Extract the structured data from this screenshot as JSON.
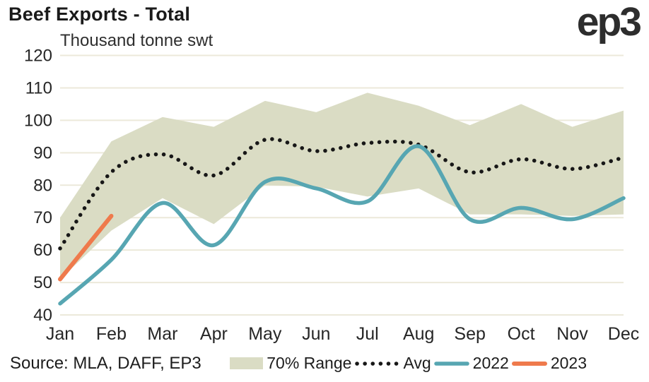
{
  "header": {
    "title": "Beef Exports - Total",
    "subtitle": "Thousand tonne swt",
    "logo": "ep3"
  },
  "source": "Source: MLA, DAFF, EP3",
  "legend": {
    "items": [
      {
        "label": "70% Range",
        "icon": "band-swatch"
      },
      {
        "label": "Avg",
        "icon": "dotted-line"
      },
      {
        "label": "2022",
        "icon": "teal-line"
      },
      {
        "label": "2023",
        "icon": "orange-line"
      }
    ]
  },
  "colors": {
    "band": "#dadcc4",
    "avg": "#171717",
    "y2022": "#57a6b2",
    "y2023": "#ef7a4c",
    "grid": "#ece9da",
    "axis_text": "#262626"
  },
  "chart_data": {
    "type": "line",
    "title": "Beef Exports - Total",
    "ylabel": "Thousand tonne swt",
    "xlabel": "",
    "categories": [
      "Jan",
      "Feb",
      "Mar",
      "Apr",
      "May",
      "Jun",
      "Jul",
      "Aug",
      "Sep",
      "Oct",
      "Nov",
      "Dec"
    ],
    "ylim": [
      40,
      120
    ],
    "yticks": [
      40,
      50,
      60,
      70,
      80,
      90,
      100,
      110,
      120
    ],
    "grid": "horizontal",
    "legend_position": "bottom",
    "band": {
      "name": "70% Range",
      "low": [
        51,
        66,
        76,
        68,
        80,
        79.5,
        76.5,
        79,
        71,
        71,
        70.5,
        71
      ],
      "high": [
        70,
        93.5,
        101,
        98,
        106,
        102.5,
        108.5,
        104.5,
        98.5,
        105,
        98,
        103
      ]
    },
    "series": [
      {
        "name": "Avg",
        "style": "dotted",
        "values": [
          60.5,
          84,
          89.5,
          83,
          94,
          90.5,
          93,
          92.5,
          84,
          88,
          85,
          88.5
        ]
      },
      {
        "name": "2022",
        "style": "solid",
        "values": [
          43.5,
          57,
          74.5,
          61.5,
          81,
          79,
          75,
          92,
          69.5,
          73,
          69.5,
          76
        ]
      },
      {
        "name": "2023",
        "style": "solid",
        "values": [
          51,
          70.5
        ]
      }
    ]
  }
}
